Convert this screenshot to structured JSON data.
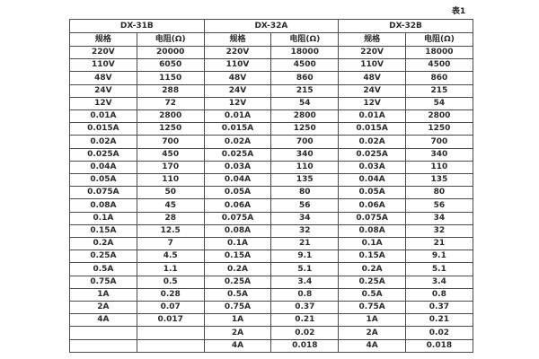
{
  "page": {
    "caption": "表1"
  },
  "table": {
    "groups": [
      {
        "title": "DX-31B",
        "col_headers": [
          "规格",
          "电阻(Ω)"
        ],
        "rows": [
          [
            "220V",
            "20000"
          ],
          [
            "110V",
            "6050"
          ],
          [
            "48V",
            "1150"
          ],
          [
            "24V",
            "288"
          ],
          [
            "12V",
            "72"
          ],
          [
            "0.01A",
            "2800"
          ],
          [
            "0.015A",
            "1250"
          ],
          [
            "0.02A",
            "700"
          ],
          [
            "0.025A",
            "450"
          ],
          [
            "0.04A",
            "170"
          ],
          [
            "0.05A",
            "110"
          ],
          [
            "0.075A",
            "50"
          ],
          [
            "0.08A",
            "45"
          ],
          [
            "0.1A",
            "28"
          ],
          [
            "0.15A",
            "12.5"
          ],
          [
            "0.2A",
            "7"
          ],
          [
            "0.25A",
            "4.5"
          ],
          [
            "0.5A",
            "1.1"
          ],
          [
            "0.75A",
            "0.5"
          ],
          [
            "1A",
            "0.28"
          ],
          [
            "2A",
            "0.07"
          ],
          [
            "4A",
            "0.017"
          ],
          [
            "",
            ""
          ],
          [
            "",
            ""
          ]
        ]
      },
      {
        "title": "DX-32A",
        "col_headers": [
          "规格",
          "电阻(Ω)"
        ],
        "rows": [
          [
            "220V",
            "18000"
          ],
          [
            "110V",
            "4500"
          ],
          [
            "48V",
            "860"
          ],
          [
            "24V",
            "215"
          ],
          [
            "12V",
            "54"
          ],
          [
            "0.01A",
            "2800"
          ],
          [
            "0.015A",
            "1250"
          ],
          [
            "0.02A",
            "700"
          ],
          [
            "0.025A",
            "340"
          ],
          [
            "0.03A",
            "110"
          ],
          [
            "0.04A",
            "135"
          ],
          [
            "0.05A",
            "80"
          ],
          [
            "0.06A",
            "56"
          ],
          [
            "0.075A",
            "34"
          ],
          [
            "0.08A",
            "32"
          ],
          [
            "0.1A",
            "21"
          ],
          [
            "0.15A",
            "9.1"
          ],
          [
            "0.2A",
            "5.1"
          ],
          [
            "0.25A",
            "3.4"
          ],
          [
            "0.5A",
            "0.8"
          ],
          [
            "0.75A",
            "0.37"
          ],
          [
            "1A",
            "0.21"
          ],
          [
            "2A",
            "0.02"
          ],
          [
            "4A",
            "0.018"
          ]
        ]
      },
      {
        "title": "DX-32B",
        "col_headers": [
          "规格",
          "电阻(Ω)"
        ],
        "rows": [
          [
            "220V",
            "18000"
          ],
          [
            "110V",
            "4500"
          ],
          [
            "48V",
            "860"
          ],
          [
            "24V",
            "215"
          ],
          [
            "12V",
            "54"
          ],
          [
            "0.01A",
            "2800"
          ],
          [
            "0.015A",
            "1250"
          ],
          [
            "0.02A",
            "700"
          ],
          [
            "0.025A",
            "340"
          ],
          [
            "0.03A",
            "110"
          ],
          [
            "0.04A",
            "135"
          ],
          [
            "0.05A",
            "80"
          ],
          [
            "0.06A",
            "56"
          ],
          [
            "0.075A",
            "34"
          ],
          [
            "0.08A",
            "32"
          ],
          [
            "0.1A",
            "21"
          ],
          [
            "0.15A",
            "9.1"
          ],
          [
            "0.2A",
            "5.1"
          ],
          [
            "0.25A",
            "3.4"
          ],
          [
            "0.5A",
            "0.8"
          ],
          [
            "0.75A",
            "0.37"
          ],
          [
            "1A",
            "0.21"
          ],
          [
            "2A",
            "0.02"
          ],
          [
            "4A",
            "0.018"
          ]
        ]
      }
    ]
  }
}
